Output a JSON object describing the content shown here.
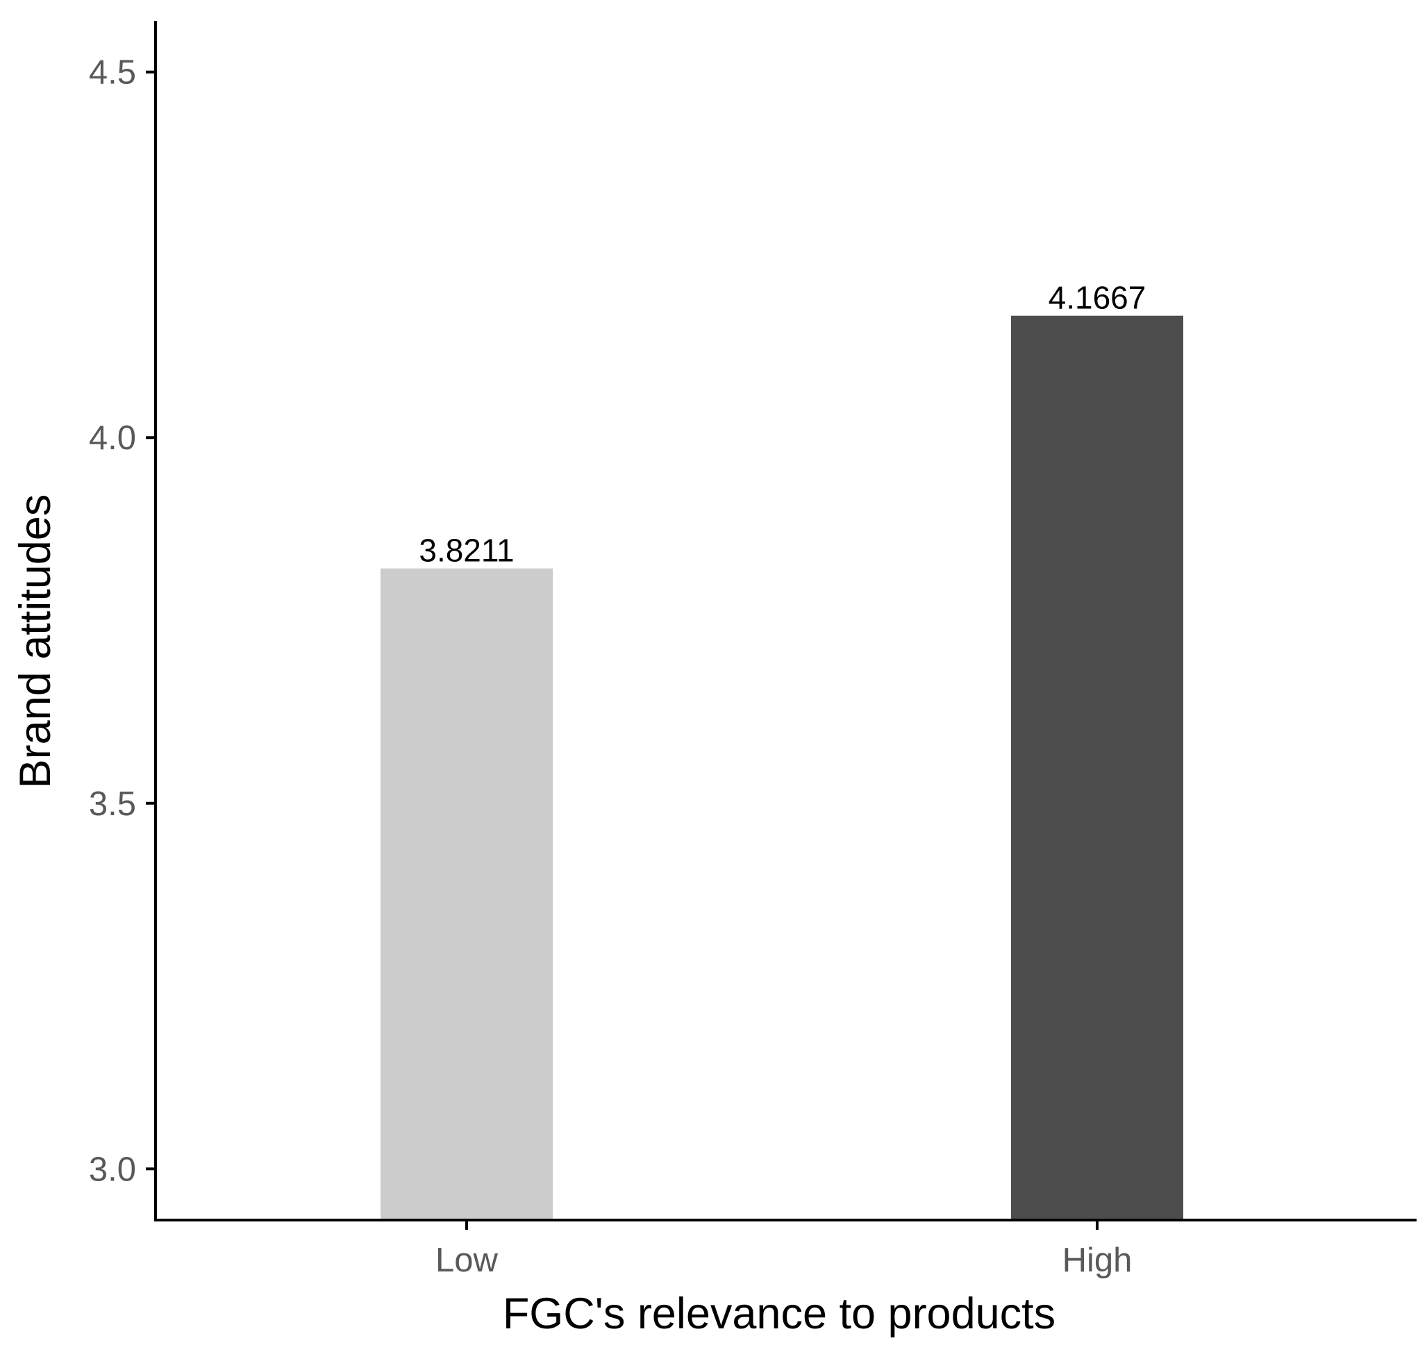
{
  "chart_data": {
    "type": "bar",
    "title": "",
    "xlabel": "FGC's relevance to products",
    "ylabel": "Brand attitudes",
    "categories": [
      "Low",
      "High"
    ],
    "values": [
      3.8211,
      4.1667
    ],
    "data_labels": [
      "3.8211",
      "4.1667"
    ],
    "bar_colors": [
      "#cccccc",
      "#4d4d4d"
    ],
    "ylim": [
      2.93,
      4.57
    ],
    "y_ticks": [
      3.0,
      3.5,
      4.0,
      4.5
    ],
    "y_tick_labels": [
      "3.0",
      "3.5",
      "4.0",
      "4.5"
    ],
    "grid": false,
    "legend": "none",
    "axis_color": "#000000",
    "tick_label_color": "#595959"
  }
}
